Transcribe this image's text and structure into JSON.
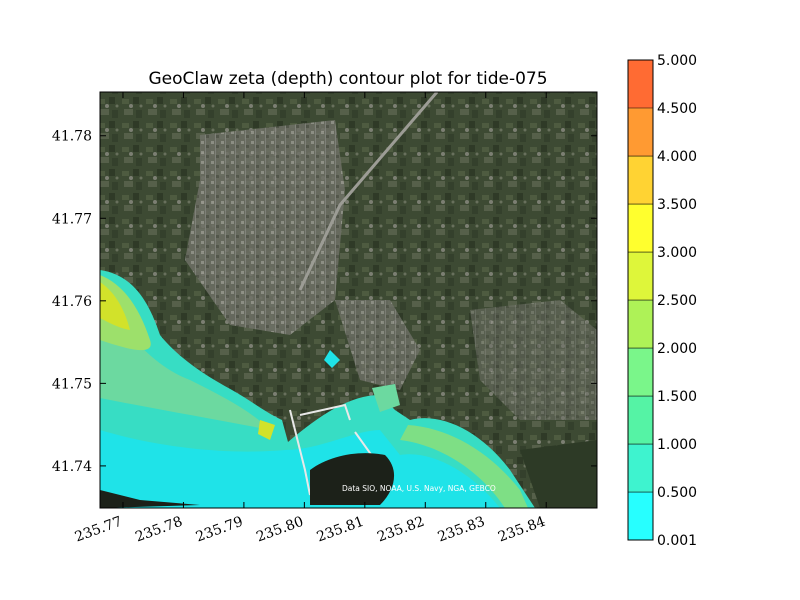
{
  "chart_data": {
    "type": "contour",
    "title": "GeoClaw zeta (depth) contour plot for tide-075",
    "xlabel": "",
    "ylabel": "",
    "xlim": [
      235.7662,
      235.8484
    ],
    "ylim": [
      41.7349,
      41.7853
    ],
    "x_ticks": [
      "235.77",
      "235.78",
      "235.79",
      "235.80",
      "235.81",
      "235.82",
      "235.83",
      "235.84"
    ],
    "y_ticks": [
      "41.74",
      "41.75",
      "41.76",
      "41.77",
      "41.78"
    ],
    "grid": false,
    "basemap_attribution": "Data SIO, NOAA, U.S. Navy, NGA, GEBCO",
    "colorbar": {
      "levels": [
        "0.001",
        "0.500",
        "1.000",
        "1.500",
        "2.000",
        "2.500",
        "3.000",
        "3.500",
        "4.000",
        "4.500",
        "5.000"
      ],
      "colors": [
        "#27FFFF",
        "#3EF3CF",
        "#55F3A5",
        "#7AF68A",
        "#AEF257",
        "#DEF63A",
        "#FFFF2E",
        "#FFD333",
        "#FF9A32",
        "#FF6B33",
        "#FF2E2E"
      ]
    },
    "contour_bands": [
      {
        "min": 0.001,
        "max": 0.5,
        "color": "#1FE3E8"
      },
      {
        "min": 0.5,
        "max": 1.0,
        "color": "#37DDC4"
      },
      {
        "min": 1.0,
        "max": 1.5,
        "color": "#6CD9A0"
      },
      {
        "min": 1.5,
        "max": 2.0,
        "color": "#9DE06B"
      },
      {
        "min": 2.0,
        "max": 2.5,
        "color": "#D2E22A"
      }
    ]
  }
}
